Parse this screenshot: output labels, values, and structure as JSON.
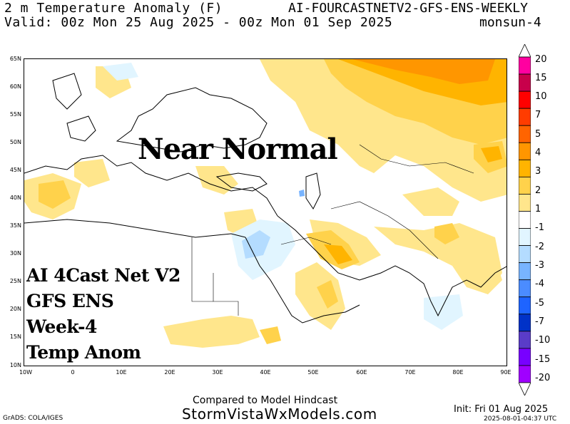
{
  "title": {
    "line1_left": "2 m Temperature Anomaly (F)",
    "line1_right": "AI-FOURCASTNETV2-GFS-ENS-WEEKLY",
    "line2_left": "Valid: 00z Mon 25 Aug 2025 - 00z Mon 01 Sep 2025",
    "line2_right": "monsun-4"
  },
  "overlay": {
    "headline": "Near Normal",
    "model_lines": [
      "AI 4Cast Net V2",
      "GFS ENS",
      "Week-4",
      "Temp Anom"
    ]
  },
  "axes": {
    "lat_labels": [
      "65N",
      "60N",
      "55N",
      "50N",
      "45N",
      "40N",
      "35N",
      "30N",
      "25N",
      "20N",
      "15N",
      "10N"
    ],
    "lon_labels": [
      "10W",
      "0",
      "10E",
      "20E",
      "30E",
      "40E",
      "50E",
      "60E",
      "70E",
      "80E",
      "90E"
    ]
  },
  "colorbar": {
    "labels": [
      "20",
      "15",
      "10",
      "7",
      "5",
      "4",
      "3",
      "2",
      "1",
      "-1",
      "-2",
      "-3",
      "-4",
      "-5",
      "-7",
      "-10",
      "-15",
      "-20"
    ],
    "colors": [
      "#ff00a0",
      "#c8004b",
      "#ff0000",
      "#ff3c00",
      "#ff6400",
      "#ff9600",
      "#ffb400",
      "#ffd24b",
      "#ffe68c",
      "#ffffff",
      "#e1f5ff",
      "#b4dcff",
      "#78b4ff",
      "#4b8cff",
      "#1e64ff",
      "#0032c8",
      "#5a3cc8",
      "#7800ff",
      "#a000ff"
    ]
  },
  "footer": {
    "grads": "GrADS: COLA/IGES",
    "compared": "Compared to Model Hindcast",
    "site": "StormVistaWxModels.com",
    "init": "Init: Fri 01 Aug 2025",
    "timestamp": "2025-08-01-04:37 UTC"
  }
}
